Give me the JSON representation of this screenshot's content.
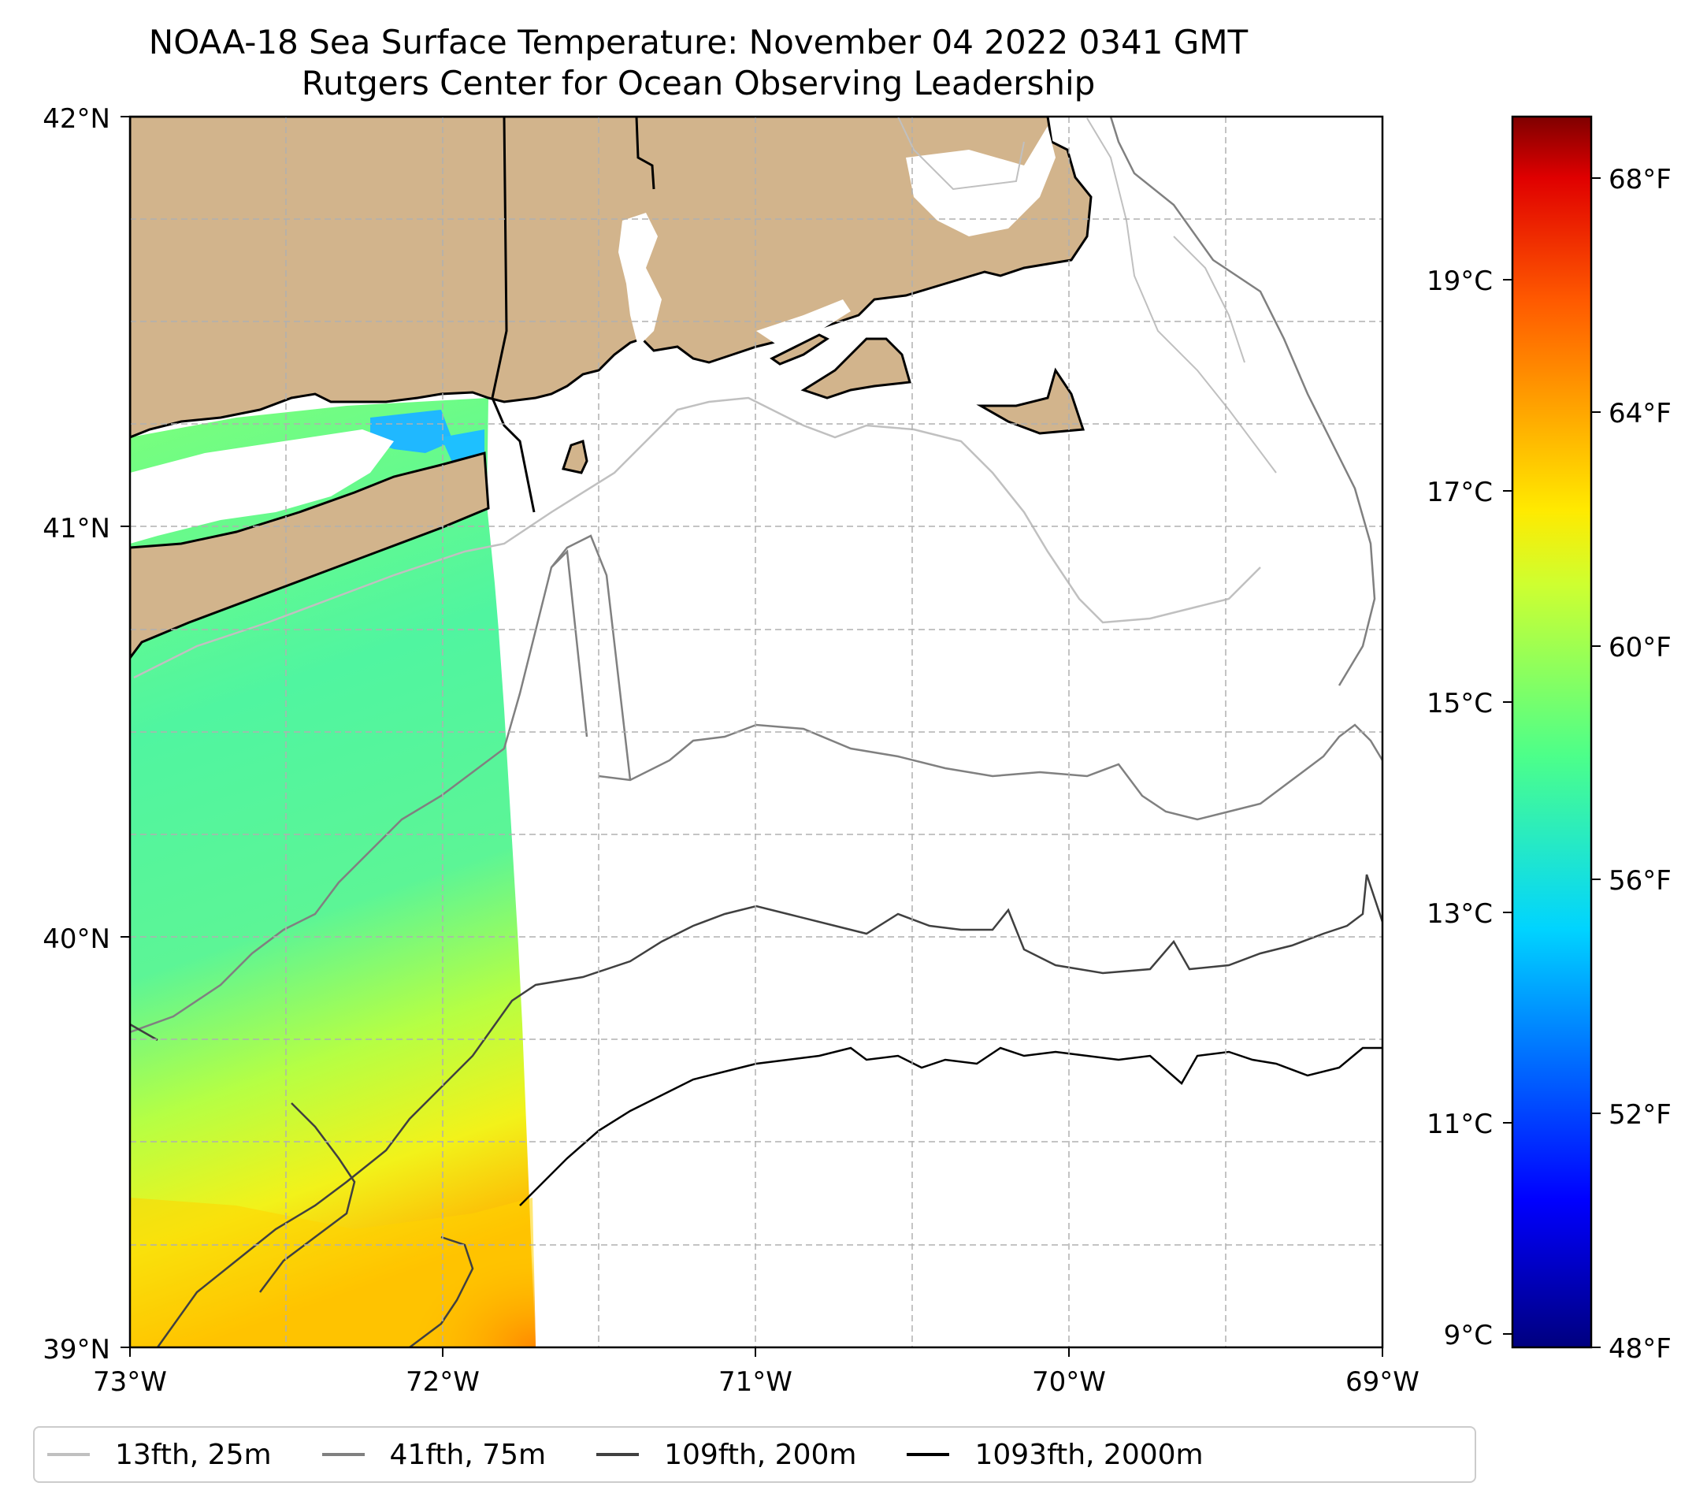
{
  "title": {
    "line1": "NOAA-18 Sea Surface Temperature: November 04 2022 0341 GMT",
    "line2": "Rutgers Center for Ocean Observing Leadership"
  },
  "axes": {
    "lat_labels": [
      "42°N",
      "41°N",
      "40°N",
      "39°N"
    ],
    "lon_labels": [
      "73°W",
      "72°W",
      "71°W",
      "70°W",
      "69°W"
    ],
    "lat_range": [
      39,
      42
    ],
    "lon_range": [
      -73,
      -69
    ]
  },
  "colorbar": {
    "celsius_labels": [
      "19°C",
      "17°C",
      "15°C",
      "13°C",
      "11°C",
      "9°C"
    ],
    "fahrenheit_labels": [
      "68°F",
      "64°F",
      "60°F",
      "56°F",
      "52°F",
      "48°F"
    ],
    "colormap": "jet",
    "range_f": [
      48,
      69
    ]
  },
  "legend": {
    "items": [
      {
        "label": "13fth, 25m",
        "color": "#c0c0c0"
      },
      {
        "label": "41fth, 75m",
        "color": "#808080"
      },
      {
        "label": "109fth, 200m",
        "color": "#404040"
      },
      {
        "label": "1093fth, 2000m",
        "color": "#000000"
      }
    ]
  },
  "colors": {
    "land": "#d2b48c",
    "water_none": "#ffffff",
    "grid": "#b0b0b0"
  }
}
